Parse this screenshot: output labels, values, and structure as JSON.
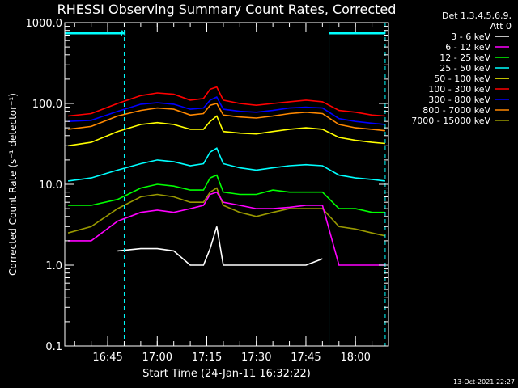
{
  "chart_data": {
    "type": "line",
    "title": "RHESSI Observing Summary Count Rates, Corrected",
    "xlabel": "Start Time (24-Jan-11 16:32:22)",
    "ylabel": "Corrected Count Rate (s⁻¹ detector⁻¹)",
    "y_scale": "log",
    "ylim": [
      0.1,
      1000.0
    ],
    "xlim": [
      "16:32",
      "18:10"
    ],
    "x_ticks": [
      "16:45",
      "17:00",
      "17:15",
      "17:30",
      "17:45",
      "18:00"
    ],
    "y_ticks": [
      "0.1",
      "1.0",
      "10.0",
      "100.0",
      "1000.0"
    ],
    "grid": false,
    "legend_header": [
      "Det 1,3,4,5,6,9,",
      "Att 0"
    ],
    "legend_position": "right",
    "footer_date": "13-Oct-2021 22:27",
    "annotations": [
      {
        "label": "N",
        "x": "16:48"
      }
    ],
    "night_markers": [
      "16:32",
      "16:50",
      "17:52",
      "18:09"
    ],
    "x": [
      "16:33",
      "16:40",
      "16:48",
      "16:55",
      "17:00",
      "17:05",
      "17:10",
      "17:14",
      "17:16",
      "17:18",
      "17:20",
      "17:25",
      "17:30",
      "17:35",
      "17:40",
      "17:45",
      "17:50",
      "17:55",
      "18:00",
      "18:05",
      "18:09"
    ],
    "series": [
      {
        "name": "3 - 6 keV",
        "color": "#ffffff",
        "values": [
          null,
          null,
          1.5,
          1.6,
          1.6,
          1.5,
          1.0,
          1.0,
          1.6,
          3.0,
          1.0,
          1.0,
          1.0,
          1.0,
          1.0,
          1.0,
          1.2,
          null,
          null,
          null,
          null
        ]
      },
      {
        "name": "6 - 12 keV",
        "color": "#ff00ff",
        "values": [
          2.0,
          2.0,
          3.5,
          4.5,
          4.8,
          4.5,
          5.0,
          5.5,
          7.5,
          8.0,
          6.0,
          5.5,
          5.0,
          5.0,
          5.2,
          5.5,
          5.5,
          1.0,
          1.0,
          1.0,
          1.0
        ]
      },
      {
        "name": "12 - 25 keV",
        "color": "#00ff00",
        "values": [
          5.5,
          5.5,
          6.5,
          9.0,
          10.0,
          9.5,
          8.5,
          8.5,
          12.0,
          13.0,
          8.0,
          7.5,
          7.5,
          8.5,
          8.0,
          8.0,
          8.0,
          5.0,
          5.0,
          4.5,
          4.5
        ]
      },
      {
        "name": "25 - 50 keV",
        "color": "#00ffff",
        "values": [
          11.0,
          12.0,
          15.0,
          18.0,
          20.0,
          19.0,
          17.0,
          18.0,
          25.0,
          28.0,
          18.0,
          16.0,
          15.0,
          16.0,
          17.0,
          17.5,
          17.0,
          13.0,
          12.0,
          11.5,
          11.0
        ]
      },
      {
        "name": "50 - 100 keV",
        "color": "#ffff00",
        "values": [
          30.0,
          33.0,
          45.0,
          55.0,
          58.0,
          55.0,
          48.0,
          48.0,
          60.0,
          70.0,
          45.0,
          43.0,
          42.0,
          45.0,
          48.0,
          50.0,
          48.0,
          38.0,
          35.0,
          33.0,
          32.0
        ]
      },
      {
        "name": "100 - 300 keV",
        "color": "#ff0000",
        "values": [
          70.0,
          75.0,
          100.0,
          125.0,
          135.0,
          130.0,
          110.0,
          115.0,
          150.0,
          160.0,
          110.0,
          100.0,
          95.0,
          100.0,
          105.0,
          110.0,
          105.0,
          82.0,
          78.0,
          72.0,
          70.0
        ]
      },
      {
        "name": "300 - 800 keV",
        "color": "#0000ff",
        "values": [
          60.0,
          62.0,
          80.0,
          98.0,
          102.0,
          98.0,
          85.0,
          88.0,
          110.0,
          120.0,
          85.0,
          80.0,
          78.0,
          82.0,
          88.0,
          90.0,
          88.0,
          65.0,
          60.0,
          57.0,
          55.0
        ]
      },
      {
        "name": "800 - 7000 keV",
        "color": "#ff8800",
        "values": [
          48.0,
          52.0,
          70.0,
          82.0,
          88.0,
          85.0,
          72.0,
          75.0,
          95.0,
          100.0,
          72.0,
          68.0,
          66.0,
          70.0,
          75.0,
          78.0,
          75.0,
          55.0,
          50.0,
          48.0,
          46.0
        ]
      },
      {
        "name": "7000 - 15000 keV",
        "color": "#999900",
        "values": [
          2.5,
          3.0,
          5.0,
          7.0,
          7.5,
          7.0,
          6.0,
          6.0,
          8.0,
          9.0,
          5.5,
          4.5,
          4.0,
          4.5,
          5.0,
          5.0,
          5.0,
          3.0,
          2.8,
          2.5,
          2.3
        ]
      }
    ]
  }
}
